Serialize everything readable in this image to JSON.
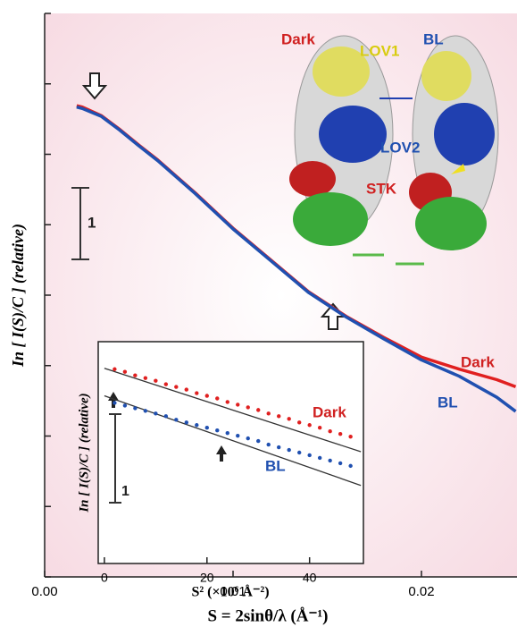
{
  "chart_data": [
    {
      "type": "line",
      "y_label": "In [ I(S)/C ] (relative)",
      "x_label": "S = 2sinθ/λ (Å⁻¹)",
      "xlim": [
        0,
        0.025
      ],
      "xticks": [
        {
          "value": 0,
          "label": "0.00"
        },
        0.01,
        0.02
      ],
      "ylim": [
        -8,
        0
      ],
      "yticks": [
        -8,
        -7,
        -6,
        -5,
        -4,
        -3,
        -2,
        -1,
        0
      ],
      "ytick_labels": false,
      "scale_bar_label": "1",
      "x": [
        0.0017,
        0.002,
        0.003,
        0.004,
        0.005,
        0.006,
        0.008,
        0.01,
        0.012,
        0.014,
        0.016,
        0.018,
        0.02,
        0.022,
        0.024,
        0.025
      ],
      "series": [
        {
          "name": "Dark",
          "color": "#e02020",
          "values": [
            -1.31,
            -1.33,
            -1.45,
            -1.65,
            -1.87,
            -2.08,
            -2.55,
            -3.05,
            -3.5,
            -3.95,
            -4.3,
            -4.6,
            -4.88,
            -5.05,
            -5.2,
            -5.3
          ]
        },
        {
          "name": "BL",
          "color": "#2050b0",
          "values": [
            -1.33,
            -1.35,
            -1.46,
            -1.66,
            -1.88,
            -2.09,
            -2.56,
            -3.06,
            -3.51,
            -3.96,
            -4.31,
            -4.62,
            -4.92,
            -5.15,
            -5.45,
            -5.65
          ]
        }
      ],
      "structure_labels": [
        "Dark",
        "LOV1",
        "BL",
        "LOV2",
        "STK"
      ]
    },
    {
      "type": "scatter",
      "y_label": "In [ I(S)/C ] (relative)",
      "x_label": "S² (×10⁶ Å⁻²)",
      "xlim": [
        -1.2,
        50.5
      ],
      "xticks": [
        0,
        20,
        40
      ],
      "ylim": [
        -2.5,
        0
      ],
      "scale_bar_label": "1",
      "x": [
        2,
        4,
        6,
        8,
        10,
        12,
        14,
        16,
        18,
        20,
        22,
        24,
        26,
        28,
        30,
        32,
        34,
        36,
        38,
        40,
        42,
        44,
        46,
        48
      ],
      "series": [
        {
          "name": "Dark",
          "color": "#e02020",
          "values": [
            -0.31,
            -0.34,
            -0.38,
            -0.41,
            -0.44,
            -0.48,
            -0.51,
            -0.54,
            -0.58,
            -0.61,
            -0.64,
            -0.68,
            -0.71,
            -0.74,
            -0.77,
            -0.81,
            -0.84,
            -0.87,
            -0.91,
            -0.94,
            -0.97,
            -1.01,
            -1.04,
            -1.07
          ]
        },
        {
          "name": "BL",
          "color": "#2050b0",
          "values": [
            -0.69,
            -0.72,
            -0.75,
            -0.78,
            -0.81,
            -0.84,
            -0.88,
            -0.91,
            -0.94,
            -0.97,
            -1.0,
            -1.03,
            -1.06,
            -1.09,
            -1.12,
            -1.16,
            -1.19,
            -1.22,
            -1.25,
            -1.28,
            -1.31,
            -1.34,
            -1.37,
            -1.4
          ]
        }
      ],
      "fits": [
        {
          "color": "#333333",
          "x": [
            0,
            50
          ],
          "values": [
            -0.3,
            -1.24
          ]
        },
        {
          "color": "#333333",
          "x": [
            0,
            50
          ],
          "values": [
            -0.61,
            -1.62
          ]
        }
      ]
    }
  ]
}
